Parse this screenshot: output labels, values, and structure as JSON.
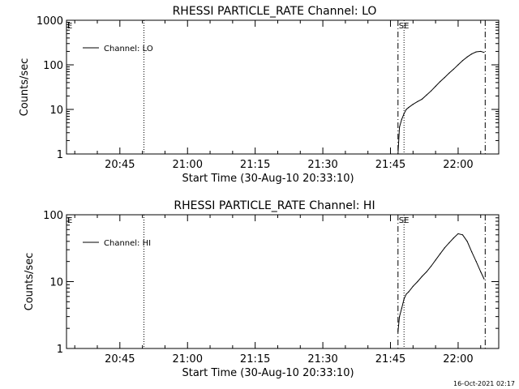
{
  "chart_data": [
    {
      "type": "line",
      "title": "RHESSI PARTICLE_RATE Channel: LO",
      "xlabel": "Start Time (30-Aug-10 20:33:10)",
      "ylabel": "Counts/sec",
      "yscale": "log",
      "ylim": [
        1,
        1000
      ],
      "xlim": [
        "20:33:10",
        "22:09:00"
      ],
      "x_ticks": [
        "20:45",
        "21:00",
        "21:15",
        "21:30",
        "21:45",
        "22:00"
      ],
      "y_ticks": [
        "1",
        "10",
        "100",
        "1000"
      ],
      "legend": "Channel: LO",
      "legend_position": "top-left",
      "flags": [
        "E",
        "SE"
      ],
      "markers": [
        {
          "time": "20:50:20",
          "style": "dotted"
        },
        {
          "time": "21:46:40",
          "style": "dash-dot"
        },
        {
          "time": "21:48:00",
          "style": "dotted"
        },
        {
          "time": "22:06:00",
          "style": "dash-dot"
        }
      ],
      "series": [
        {
          "x": [
            "21:46:40",
            "21:47:00",
            "21:47:30",
            "21:48:00",
            "21:48:30",
            "21:49:00",
            "21:50:00",
            "21:51:00",
            "21:52:00",
            "21:53:00",
            "21:54:00",
            "21:55:00",
            "21:56:00",
            "21:57:00",
            "21:58:00",
            "21:59:00",
            "22:00:00",
            "22:01:00",
            "22:02:00",
            "22:03:00",
            "22:04:00",
            "22:05:00",
            "22:05:45"
          ],
          "y": [
            1,
            4,
            6,
            8,
            10,
            11,
            13,
            15,
            17,
            21,
            26,
            33,
            42,
            52,
            65,
            80,
            100,
            125,
            150,
            175,
            195,
            200,
            190
          ]
        }
      ]
    },
    {
      "type": "line",
      "title": "RHESSI PARTICLE_RATE Channel: HI",
      "xlabel": "Start Time (30-Aug-10 20:33:10)",
      "ylabel": "Counts/sec",
      "yscale": "log",
      "ylim": [
        1,
        100
      ],
      "xlim": [
        "20:33:10",
        "22:09:00"
      ],
      "x_ticks": [
        "20:45",
        "21:00",
        "21:15",
        "21:30",
        "21:45",
        "22:00"
      ],
      "y_ticks": [
        "1",
        "10",
        "100"
      ],
      "legend": "Channel: HI",
      "legend_position": "top-left",
      "flags": [
        "E",
        "SE"
      ],
      "markers": [
        {
          "time": "20:50:20",
          "style": "dotted"
        },
        {
          "time": "21:46:40",
          "style": "dash-dot"
        },
        {
          "time": "21:48:00",
          "style": "dotted"
        },
        {
          "time": "22:06:00",
          "style": "dash-dot"
        }
      ],
      "series": [
        {
          "x": [
            "21:46:40",
            "21:47:00",
            "21:47:30",
            "21:48:00",
            "21:48:30",
            "21:49:00",
            "21:50:00",
            "21:51:00",
            "21:52:00",
            "21:53:00",
            "21:54:00",
            "21:55:00",
            "21:56:00",
            "21:57:00",
            "21:58:00",
            "21:59:00",
            "22:00:00",
            "22:01:00",
            "22:02:00",
            "22:03:00",
            "22:04:00",
            "22:05:00",
            "22:05:45"
          ],
          "y": [
            1.8,
            3.0,
            4.0,
            5.5,
            6.5,
            7.0,
            8.5,
            10,
            12,
            14,
            17,
            21,
            26,
            32,
            38,
            45,
            52,
            50,
            40,
            28,
            20,
            14,
            11
          ]
        }
      ]
    }
  ],
  "footer": {
    "timestamp": "16-Oct-2021 02:17"
  }
}
